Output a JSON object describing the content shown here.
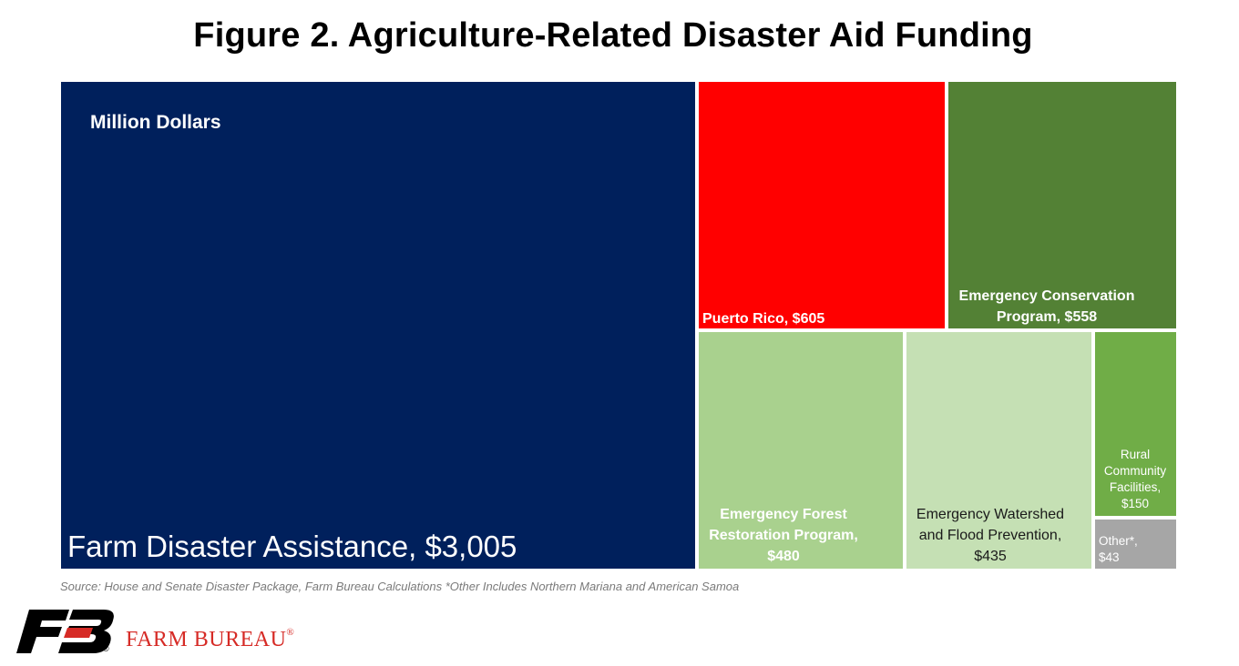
{
  "title": "Figure 2. Agriculture-Related Disaster Aid Funding",
  "source_note": "Source: House and Senate Disaster Package, Farm Bureau Calculations *Other Includes Northern Mariana and American Samoa",
  "brand": {
    "name": "FARM BUREAU",
    "registered": "®",
    "logo_letters": "FB"
  },
  "chart_data": {
    "type": "treemap",
    "unit_label": "Million Dollars",
    "items": [
      {
        "name": "Farm Disaster Assistance",
        "value": 3005,
        "color": "#00205c",
        "label_lines": [
          "Farm Disaster Assistance, $3,005"
        ]
      },
      {
        "name": "Puerto Rico",
        "value": 605,
        "color": "#ff0000",
        "label_lines": [
          "Puerto Rico, $605"
        ]
      },
      {
        "name": "Emergency Conservation Program",
        "value": 558,
        "color": "#538135",
        "label_lines": [
          "Emergency Conservation",
          "Program, $558"
        ]
      },
      {
        "name": "Emergency Forest Restoration Program",
        "value": 480,
        "color": "#a9d18e",
        "label_lines": [
          "Emergency Forest",
          "Restoration Program,",
          "$480"
        ]
      },
      {
        "name": "Emergency Watershed and Flood Prevention",
        "value": 435,
        "color": "#c5e0b4",
        "label_lines": [
          "Emergency Watershed",
          "and Flood Prevention,",
          "$435"
        ]
      },
      {
        "name": "Rural Community Facilities",
        "value": 150,
        "color": "#70ad47",
        "label_lines": [
          "Rural",
          "Community",
          "Facilities,",
          "$150"
        ]
      },
      {
        "name": "Other*",
        "value": 43,
        "color": "#a6a6a6",
        "label_lines": [
          "Other*,",
          "$43"
        ]
      }
    ]
  }
}
